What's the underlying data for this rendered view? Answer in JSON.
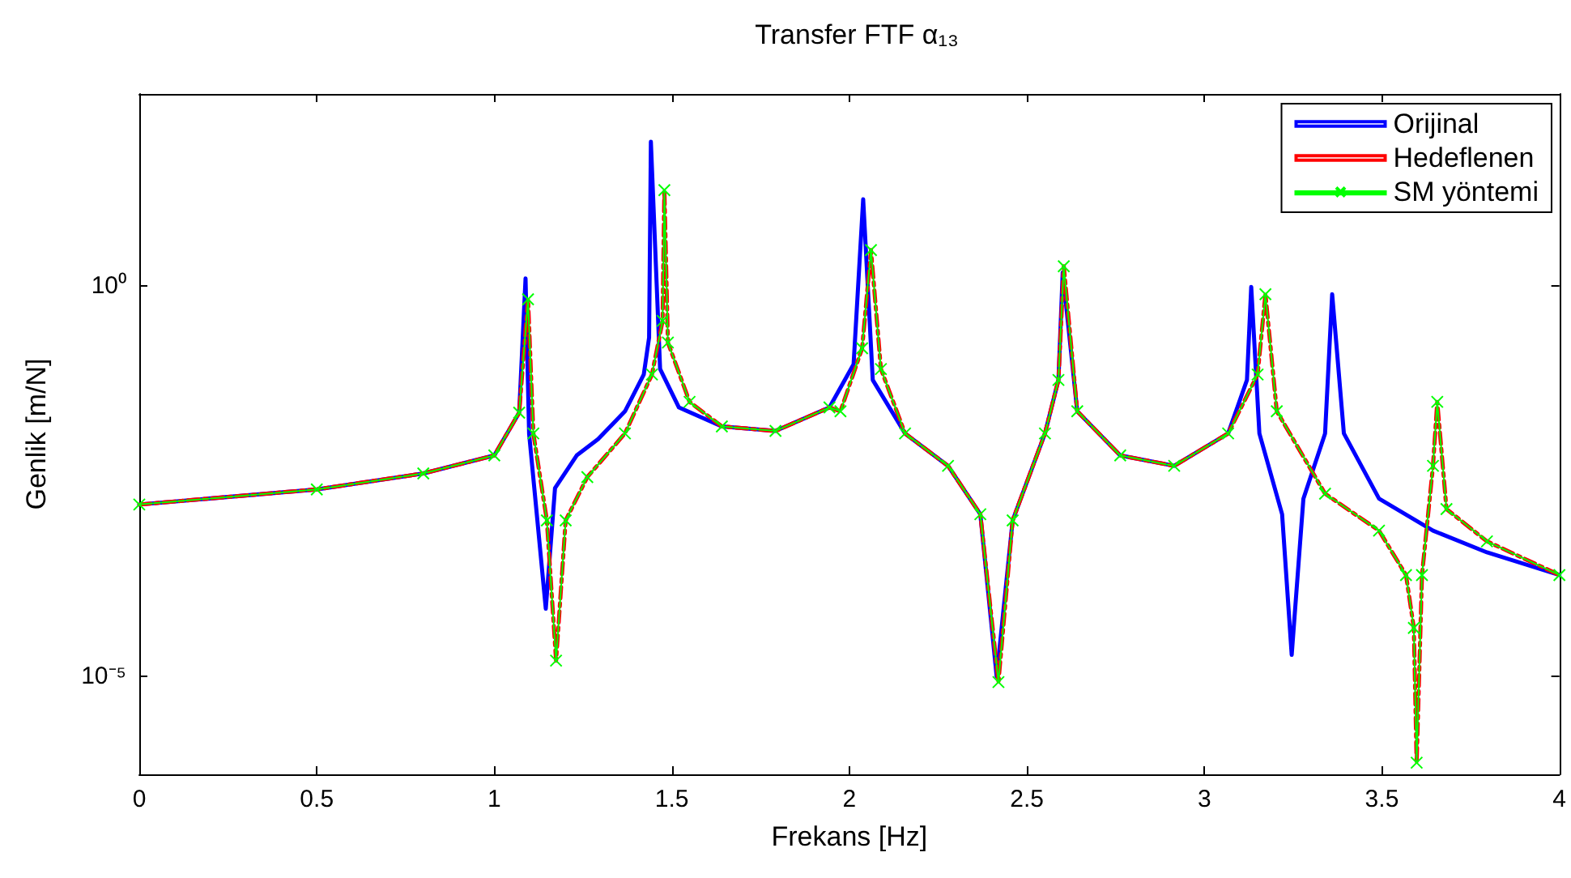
{
  "chart_data": {
    "type": "line",
    "title": "Transfer FTF α₁₃",
    "xlabel": "Frekans [Hz]",
    "ylabel": "Genlik [m/N]",
    "log": "y",
    "grid": false,
    "legend": "top right",
    "xlim": [
      0,
      4
    ],
    "xticks": [
      0,
      0.5,
      1,
      1.5,
      2,
      2.5,
      3,
      3.5,
      4
    ],
    "ylim": [
      5.6e-07,
      290
    ],
    "yticks": [
      {
        "value": 1,
        "label": "10⁰"
      },
      {
        "value": 1e-05,
        "label": "10⁻⁵"
      }
    ],
    "series": [
      {
        "name": "Orijinal",
        "color": "#0000ff",
        "line_style": "solid",
        "marker": "none",
        "x": [
          0,
          0.5,
          0.8,
          1.0,
          1.07,
          1.088,
          1.098,
          1.145,
          1.171,
          1.232,
          1.292,
          1.368,
          1.421,
          1.436,
          1.441,
          1.467,
          1.52,
          1.641,
          1.792,
          1.944,
          2.012,
          2.039,
          2.066,
          2.157,
          2.278,
          2.369,
          2.415,
          2.46,
          2.551,
          2.589,
          2.601,
          2.642,
          2.763,
          2.915,
          3.067,
          3.12,
          3.132,
          3.155,
          3.219,
          3.246,
          3.279,
          3.34,
          3.36,
          3.393,
          3.492,
          3.644,
          3.796,
          4.0
        ],
        "values": [
          0.0016,
          0.0025,
          0.004,
          0.0068,
          0.024,
          1.26,
          0.013,
          7.4e-05,
          0.0026,
          0.0068,
          0.011,
          0.025,
          0.074,
          0.22,
          71,
          0.087,
          0.028,
          0.016,
          0.014,
          0.028,
          0.1,
          13,
          0.063,
          0.013,
          0.005,
          0.0012,
          1e-05,
          0.001,
          0.013,
          0.063,
          1.5,
          0.025,
          0.0068,
          0.005,
          0.013,
          0.063,
          0.98,
          0.013,
          0.0012,
          1.9e-05,
          0.0019,
          0.013,
          0.79,
          0.013,
          0.0019,
          0.00074,
          0.00039,
          0.0002
        ]
      },
      {
        "name": "Hedeflenen",
        "color": "#ff0000",
        "line_style": "dashed",
        "marker": "none",
        "x": [
          0,
          0.5,
          0.8,
          1.0,
          1.07,
          1.095,
          1.11,
          1.148,
          1.174,
          1.201,
          1.262,
          1.368,
          1.444,
          1.474,
          1.479,
          1.489,
          1.55,
          1.641,
          1.792,
          1.944,
          1.975,
          2.036,
          2.061,
          2.089,
          2.157,
          2.278,
          2.369,
          2.42,
          2.46,
          2.551,
          2.589,
          2.604,
          2.642,
          2.763,
          2.915,
          3.067,
          3.15,
          3.172,
          3.204,
          3.34,
          3.492,
          3.568,
          3.59,
          3.598,
          3.613,
          3.644,
          3.656,
          3.682,
          3.796,
          4.0
        ],
        "values": [
          0.0016,
          0.0025,
          0.004,
          0.0068,
          0.024,
          0.68,
          0.013,
          0.001,
          1.6e-05,
          0.001,
          0.0036,
          0.013,
          0.074,
          0.36,
          17,
          0.19,
          0.033,
          0.016,
          0.014,
          0.028,
          0.025,
          0.16,
          2.9,
          0.087,
          0.013,
          0.005,
          0.0012,
          8.5e-06,
          0.001,
          0.013,
          0.063,
          1.8,
          0.025,
          0.0068,
          0.005,
          0.013,
          0.074,
          0.79,
          0.025,
          0.0022,
          0.00074,
          0.0002,
          4.2e-05,
          7.9e-07,
          0.0002,
          0.005,
          0.033,
          0.0014,
          0.00054,
          0.0002
        ]
      },
      {
        "name": "SM yöntemi",
        "color": "#00ff00",
        "line_style": "solid",
        "marker": "cross",
        "x": [
          0,
          0.5,
          0.8,
          1.0,
          1.07,
          1.095,
          1.11,
          1.148,
          1.174,
          1.201,
          1.262,
          1.368,
          1.444,
          1.474,
          1.479,
          1.489,
          1.55,
          1.641,
          1.792,
          1.944,
          1.975,
          2.036,
          2.061,
          2.089,
          2.157,
          2.278,
          2.369,
          2.42,
          2.46,
          2.551,
          2.589,
          2.604,
          2.642,
          2.763,
          2.915,
          3.067,
          3.15,
          3.172,
          3.204,
          3.34,
          3.492,
          3.568,
          3.59,
          3.598,
          3.613,
          3.644,
          3.656,
          3.682,
          3.796,
          4.0
        ],
        "values": [
          0.0016,
          0.0025,
          0.004,
          0.0068,
          0.024,
          0.68,
          0.013,
          0.001,
          1.6e-05,
          0.001,
          0.0036,
          0.013,
          0.074,
          0.36,
          17,
          0.19,
          0.033,
          0.016,
          0.014,
          0.028,
          0.025,
          0.16,
          2.9,
          0.087,
          0.013,
          0.005,
          0.0012,
          8.5e-06,
          0.001,
          0.013,
          0.063,
          1.8,
          0.025,
          0.0068,
          0.005,
          0.013,
          0.074,
          0.79,
          0.025,
          0.0022,
          0.00074,
          0.0002,
          4.2e-05,
          7.9e-07,
          0.0002,
          0.005,
          0.033,
          0.0014,
          0.00054,
          0.0002
        ]
      }
    ]
  }
}
